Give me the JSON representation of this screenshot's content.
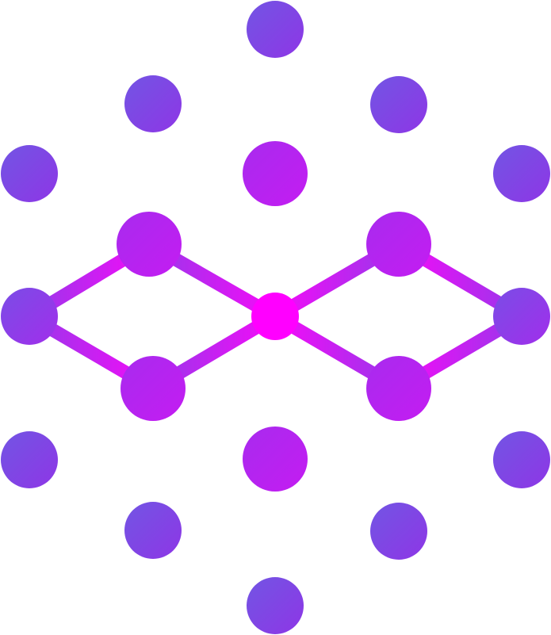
{
  "logo": {
    "icon": "infinity-network-dots-icon",
    "colors": {
      "outer_dot_start": "#7255E3",
      "outer_dot_end": "#8E36E6",
      "inner_dot_start": "#C41CF2",
      "inner_dot_end": "#B12AEF",
      "center_dot": "#FF00FF",
      "link_color": "#D419F2",
      "background": "#FFFFFF"
    }
  }
}
